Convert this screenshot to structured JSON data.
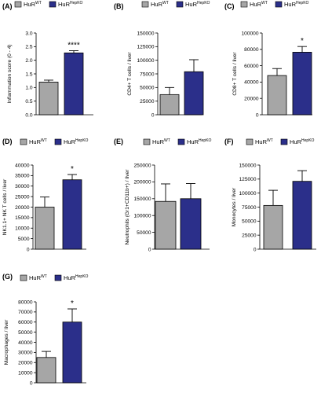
{
  "colors": {
    "wt": "#a6a6a6",
    "ko": "#2b2f8a",
    "stroke": "#000000"
  },
  "legend": {
    "wt_base": "HuR",
    "wt_sup": "WT",
    "ko_base": "HuR",
    "ko_sup": "HepKO"
  },
  "chart_data": [
    {
      "type": "bar",
      "id": "A",
      "panel": "(A)",
      "ylabel": "Inflammation score (0 - 4)",
      "ylim": [
        0,
        3
      ],
      "yticks": [
        "0.0",
        "0.5",
        "1.0",
        "1.5",
        "2.0",
        "2.5",
        "3.0"
      ],
      "categories": [
        "HuR WT",
        "HuR HepKO"
      ],
      "values": [
        1.2,
        2.27
      ],
      "errors": [
        0.07,
        0.08
      ],
      "significance": "****"
    },
    {
      "type": "bar",
      "id": "B",
      "panel": "(B)",
      "ylabel": "CD4+ T cells / liver",
      "ylim": [
        0,
        150000
      ],
      "yticks": [
        "0",
        "25000",
        "50000",
        "75000",
        "100000",
        "125000",
        "150000"
      ],
      "categories": [
        "HuR WT",
        "HuR HepKO"
      ],
      "values": [
        37000,
        79000
      ],
      "errors": [
        13000,
        22000
      ],
      "significance": ""
    },
    {
      "type": "bar",
      "id": "C",
      "panel": "(C)",
      "ylabel": "CD8+ T cells / liver",
      "ylim": [
        0,
        100000
      ],
      "yticks": [
        "0",
        "20000",
        "40000",
        "60000",
        "80000",
        "100000"
      ],
      "categories": [
        "HuR WT",
        "HuR HepKO"
      ],
      "values": [
        48000,
        76500
      ],
      "errors": [
        8500,
        7000
      ],
      "significance": "*"
    },
    {
      "type": "bar",
      "id": "D",
      "panel": "(D)",
      "ylabel": "NK1.1+ NK T cells / liver",
      "ylim": [
        0,
        40000
      ],
      "yticks": [
        "0",
        "5000",
        "10000",
        "15000",
        "20000",
        "25000",
        "30000",
        "35000",
        "40000"
      ],
      "categories": [
        "HuR WT",
        "HuR HepKO"
      ],
      "values": [
        20000,
        33000
      ],
      "errors": [
        4800,
        2500
      ],
      "significance": "*"
    },
    {
      "type": "bar",
      "id": "E",
      "panel": "(E)",
      "ylabel": "Neutrophils (Gr1+CD11b+) / liver",
      "ylim": [
        0,
        250000
      ],
      "yticks": [
        "0",
        "50000",
        "100000",
        "150000",
        "200000",
        "250000"
      ],
      "categories": [
        "HuR WT",
        "HuR HepKO"
      ],
      "values": [
        142000,
        150000
      ],
      "errors": [
        52000,
        45000
      ],
      "significance": ""
    },
    {
      "type": "bar",
      "id": "F",
      "panel": "(F)",
      "ylabel": "Monocytes / liver",
      "ylim": [
        0,
        150000
      ],
      "yticks": [
        "0",
        "25000",
        "50000",
        "75000",
        "100000",
        "125000",
        "150000"
      ],
      "categories": [
        "HuR WT",
        "HuR HepKO"
      ],
      "values": [
        78000,
        121000
      ],
      "errors": [
        27000,
        19000
      ],
      "significance": ""
    },
    {
      "type": "bar",
      "id": "G",
      "panel": "(G)",
      "ylabel": "Macrophages / liver",
      "ylim": [
        0,
        80000
      ],
      "yticks": [
        "0",
        "10000",
        "20000",
        "30000",
        "40000",
        "50000",
        "60000",
        "70000",
        "80000"
      ],
      "categories": [
        "HuR WT",
        "HuR HepKO"
      ],
      "values": [
        25000,
        60000
      ],
      "errors": [
        6000,
        13000
      ],
      "significance": "*"
    }
  ]
}
